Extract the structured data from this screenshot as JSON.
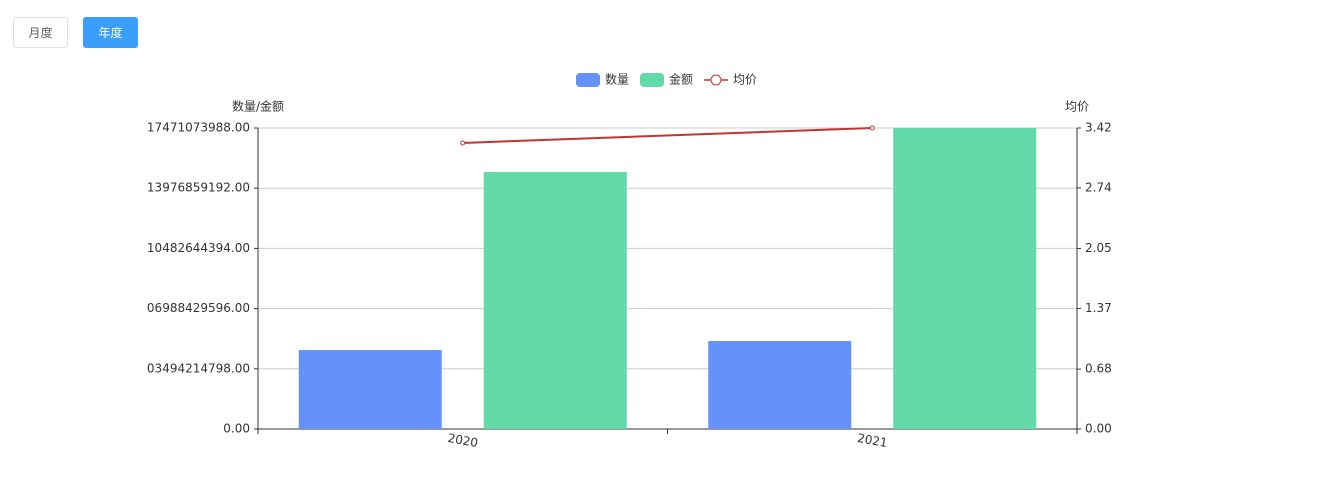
{
  "buttons": [
    "月度",
    "年度"
  ],
  "chart_data": {
    "type": "bar",
    "ylabel": "数量/金额",
    "y2label": "均价",
    "categories": [
      "2020",
      "2021"
    ],
    "series": [
      {
        "name": "数量",
        "color": "#6592fa",
        "values": [
          4585000000,
          5108000000
        ]
      },
      {
        "name": "金额",
        "color": "#62d9a8",
        "values": [
          14917000000,
          17471073988
        ]
      },
      {
        "name": "均价",
        "color": "#c23531",
        "type": "line",
        "axis": "y2",
        "values": [
          3.25,
          3.42
        ]
      }
    ],
    "ylim": [
      0,
      17471073988
    ],
    "yticks": [
      {
        "value": 0,
        "label": "0.00"
      },
      {
        "value": 3494214798,
        "label": "03494214798.00"
      },
      {
        "value": 6988429596,
        "label": "06988429596.00"
      },
      {
        "value": 10482644394,
        "label": "10482644394.00"
      },
      {
        "value": 13976859192,
        "label": "13976859192.00"
      },
      {
        "value": 17471073988,
        "label": "17471073988.00"
      }
    ],
    "y2lim": [
      0,
      3.42
    ],
    "y2ticks": [
      {
        "value": 0,
        "label": "0.00"
      },
      0.68,
      1.37,
      2.05,
      2.74,
      3.42
    ],
    "grid": true
  }
}
